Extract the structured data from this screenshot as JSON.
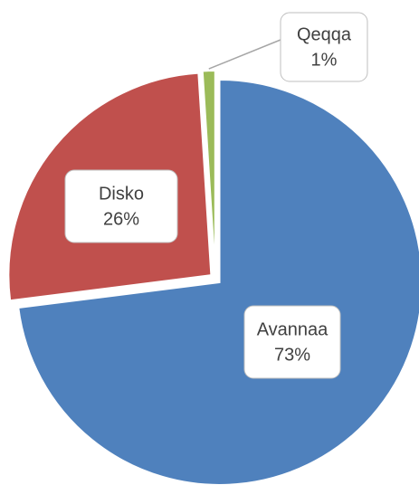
{
  "chart_data": {
    "type": "pie",
    "categories": [
      "Avannaa",
      "Disko",
      "Qeqqa"
    ],
    "values": [
      73,
      26,
      1
    ],
    "value_labels": [
      "73%",
      "26%",
      "1%"
    ],
    "colors": [
      "#4f81bd",
      "#c0504d",
      "#9bbb59"
    ]
  }
}
